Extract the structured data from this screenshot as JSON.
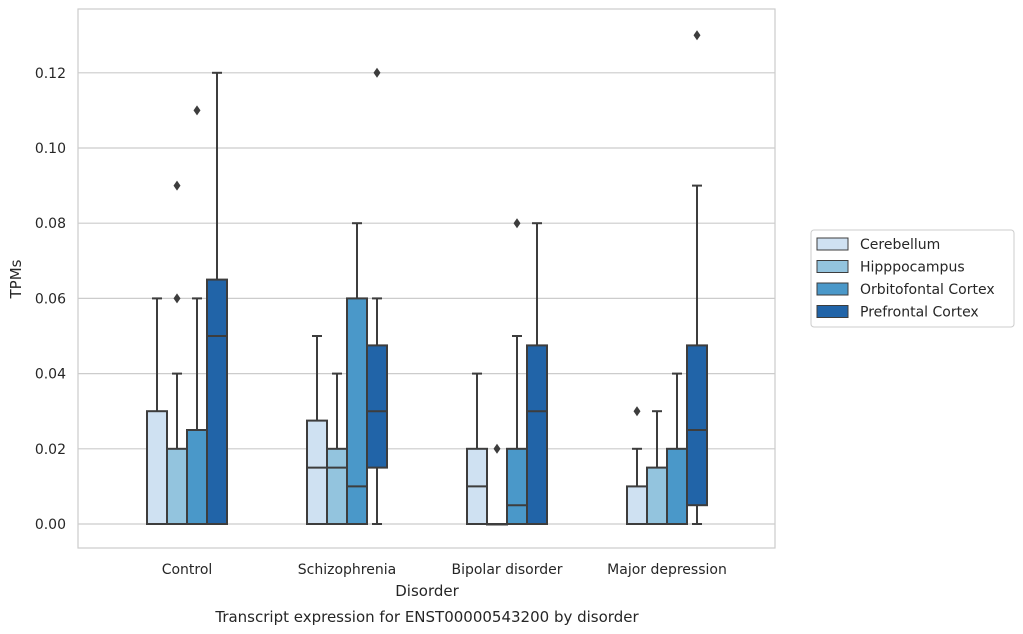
{
  "chart_data": {
    "type": "box",
    "title": "Transcript expression for ENST00000543200 by disorder",
    "xlabel": "Disorder",
    "ylabel": "TPMs",
    "ylim": [
      -0.006,
      0.137
    ],
    "yticks": [
      "0.00",
      "0.02",
      "0.04",
      "0.06",
      "0.08",
      "0.10",
      "0.12"
    ],
    "grid": true,
    "legend_position": "right",
    "categories": [
      "Control",
      "Schizophrenia",
      "Bipolar disorder",
      "Major depression"
    ],
    "series": [
      {
        "name": "Cerebellum",
        "color": "#cfe1f2",
        "boxes": [
          {
            "whisker_low": 0.0,
            "q1": 0.0,
            "median": 0.0,
            "q3": 0.03,
            "whisker_high": 0.06,
            "outliers": []
          },
          {
            "whisker_low": 0.0,
            "q1": 0.0,
            "median": 0.015,
            "q3": 0.0275,
            "whisker_high": 0.05,
            "outliers": []
          },
          {
            "whisker_low": 0.0,
            "q1": 0.0,
            "median": 0.01,
            "q3": 0.02,
            "whisker_high": 0.04,
            "outliers": []
          },
          {
            "whisker_low": 0.0,
            "q1": 0.0,
            "median": 0.0,
            "q3": 0.01,
            "whisker_high": 0.02,
            "outliers": [
              0.03
            ]
          }
        ]
      },
      {
        "name": "Hipppocampus",
        "color": "#93c4de",
        "boxes": [
          {
            "whisker_low": 0.0,
            "q1": 0.0,
            "median": 0.0,
            "q3": 0.02,
            "whisker_high": 0.04,
            "outliers": [
              0.06,
              0.09
            ]
          },
          {
            "whisker_low": 0.0,
            "q1": 0.0,
            "median": 0.015,
            "q3": 0.02,
            "whisker_high": 0.04,
            "outliers": []
          },
          {
            "whisker_low": 0.0,
            "q1": 0.0,
            "median": 0.0,
            "q3": 0.0,
            "whisker_high": 0.0,
            "outliers": [
              0.02
            ]
          },
          {
            "whisker_low": 0.0,
            "q1": 0.0,
            "median": 0.0,
            "q3": 0.015,
            "whisker_high": 0.03,
            "outliers": []
          }
        ]
      },
      {
        "name": "Orbitofontal Cortex",
        "color": "#4a98c9",
        "boxes": [
          {
            "whisker_low": 0.0,
            "q1": 0.0,
            "median": 0.0,
            "q3": 0.025,
            "whisker_high": 0.06,
            "outliers": [
              0.11
            ]
          },
          {
            "whisker_low": 0.0,
            "q1": 0.0,
            "median": 0.01,
            "q3": 0.06,
            "whisker_high": 0.08,
            "outliers": []
          },
          {
            "whisker_low": 0.0,
            "q1": 0.0,
            "median": 0.005,
            "q3": 0.02,
            "whisker_high": 0.05,
            "outliers": [
              0.08
            ]
          },
          {
            "whisker_low": 0.0,
            "q1": 0.0,
            "median": 0.0,
            "q3": 0.02,
            "whisker_high": 0.04,
            "outliers": []
          }
        ]
      },
      {
        "name": "Prefrontal Cortex",
        "color": "#2164a8",
        "boxes": [
          {
            "whisker_low": 0.0,
            "q1": 0.0,
            "median": 0.05,
            "q3": 0.065,
            "whisker_high": 0.12,
            "outliers": []
          },
          {
            "whisker_low": 0.0,
            "q1": 0.015,
            "median": 0.03,
            "q3": 0.0475,
            "whisker_high": 0.06,
            "outliers": [
              0.12
            ]
          },
          {
            "whisker_low": 0.0,
            "q1": 0.0,
            "median": 0.03,
            "q3": 0.0475,
            "whisker_high": 0.08,
            "outliers": []
          },
          {
            "whisker_low": 0.0,
            "q1": 0.005,
            "median": 0.025,
            "q3": 0.0475,
            "whisker_high": 0.09,
            "outliers": [
              0.13
            ]
          }
        ]
      }
    ]
  }
}
